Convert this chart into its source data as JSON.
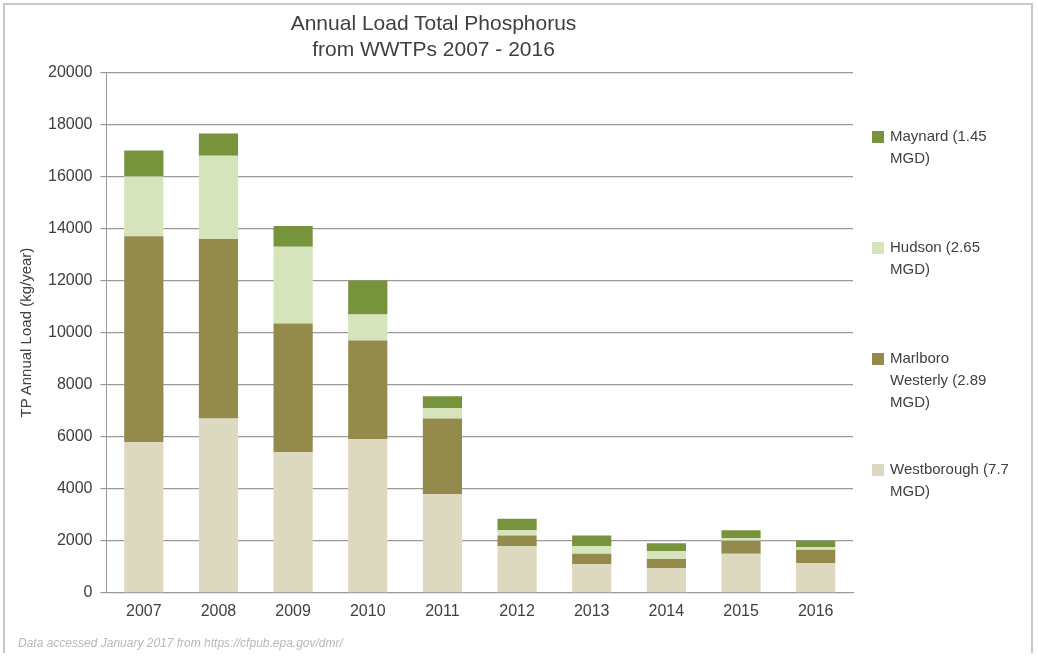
{
  "chart_data": {
    "type": "bar",
    "title": "Annual Load Total Phosphorus\nfrom WWTPs 2007 - 2016",
    "ylabel": "TP Annual Load (kg/year)",
    "categories": [
      "2007",
      "2008",
      "2009",
      "2010",
      "2011",
      "2012",
      "2013",
      "2014",
      "2015",
      "2016"
    ],
    "stacked": true,
    "series": [
      {
        "name": "Westborough (7.7 MGD)",
        "color": "#ddd8c0",
        "values": [
          5800,
          6700,
          5400,
          5900,
          3800,
          1800,
          1100,
          950,
          1500,
          1150
        ]
      },
      {
        "name": "Marlboro Westerly (2.89 MGD)",
        "color": "#938a4b",
        "values": [
          7900,
          6900,
          4950,
          3800,
          2900,
          400,
          400,
          350,
          500,
          500
        ]
      },
      {
        "name": "Hudson (2.65 MGD)",
        "color": "#d6e4bc",
        "values": [
          2300,
          3200,
          2950,
          1000,
          400,
          200,
          300,
          300,
          100,
          100
        ]
      },
      {
        "name": "Maynard (1.45 MGD)",
        "color": "#77933c",
        "values": [
          1000,
          850,
          800,
          1300,
          450,
          450,
          400,
          300,
          300,
          250
        ]
      }
    ],
    "ylim": [
      0,
      20000
    ],
    "yticks": [
      0,
      2000,
      4000,
      6000,
      8000,
      10000,
      12000,
      14000,
      16000,
      18000,
      20000
    ],
    "grid": "y",
    "legend": "right",
    "annotations": [
      "Data accessed January 2017 from https://cfpub.epa.gov/dmr/"
    ]
  }
}
